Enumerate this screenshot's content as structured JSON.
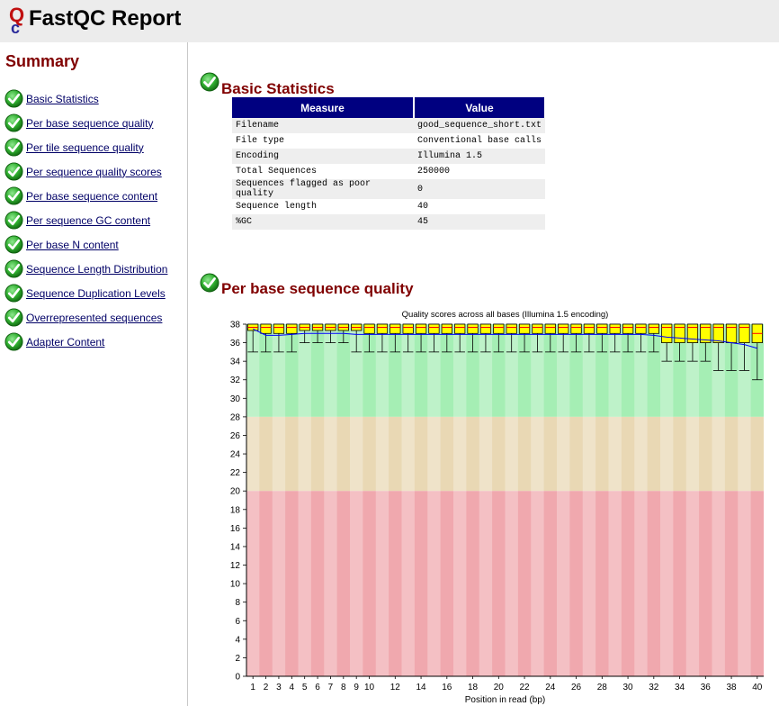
{
  "header": {
    "title": "FastQC Report"
  },
  "sidebar": {
    "title": "Summary",
    "items": [
      "Basic Statistics",
      "Per base sequence quality",
      "Per tile sequence quality",
      "Per sequence quality scores",
      "Per base sequence content",
      "Per sequence GC content",
      "Per base N content",
      "Sequence Length Distribution",
      "Sequence Duplication Levels",
      "Overrepresented sequences",
      "Adapter Content"
    ]
  },
  "basic_stats": {
    "title": "Basic Statistics",
    "headers": [
      "Measure",
      "Value"
    ],
    "rows": [
      [
        "Filename",
        "good_sequence_short.txt"
      ],
      [
        "File type",
        "Conventional base calls"
      ],
      [
        "Encoding",
        "Illumina 1.5"
      ],
      [
        "Total Sequences",
        "250000"
      ],
      [
        "Sequences flagged as poor quality",
        "0"
      ],
      [
        "Sequence length",
        "40"
      ],
      [
        "%GC",
        "45"
      ]
    ]
  },
  "per_base_quality": {
    "title": "Per base sequence quality"
  },
  "colors": {
    "accent": "#800000",
    "table_header": "#000080",
    "good_zone": "#a5eeb4",
    "warn_zone": "#e9d8b4",
    "fail_zone": "#f0a8ae",
    "box_fill": "#ffff00",
    "mean_line": "#0000ff",
    "median_line": "#ff0000"
  },
  "chart_data": {
    "type": "box",
    "title": "Quality scores across all bases (Illumina 1.5 encoding)",
    "xlabel": "Position in read (bp)",
    "ylabel": "",
    "ylim": [
      0,
      38
    ],
    "yticks": [
      0,
      2,
      4,
      6,
      8,
      10,
      12,
      14,
      16,
      18,
      20,
      22,
      24,
      26,
      28,
      30,
      32,
      34,
      36,
      38
    ],
    "xtick_labels": [
      "1",
      "2",
      "3",
      "4",
      "5",
      "6",
      "7",
      "8",
      "9",
      "10",
      "12",
      "14",
      "16",
      "18",
      "20",
      "22",
      "24",
      "26",
      "28",
      "30",
      "32",
      "34",
      "36",
      "38",
      "40"
    ],
    "zones": [
      {
        "name": "good",
        "from": 28,
        "to": 38
      },
      {
        "name": "warning",
        "from": 20,
        "to": 28
      },
      {
        "name": "fail",
        "from": 0,
        "to": 20
      }
    ],
    "positions": [
      1,
      2,
      3,
      4,
      5,
      6,
      7,
      8,
      9,
      10,
      11,
      12,
      13,
      14,
      15,
      16,
      17,
      18,
      19,
      20,
      21,
      22,
      23,
      24,
      25,
      26,
      27,
      28,
      29,
      30,
      31,
      32,
      33,
      34,
      35,
      36,
      37,
      38,
      39,
      40
    ],
    "series": [
      {
        "name": "lower_whisker",
        "values": [
          35,
          35,
          35,
          35,
          36,
          36,
          36,
          36,
          35,
          35,
          35,
          35,
          35,
          35,
          35,
          35,
          35,
          35,
          35,
          35,
          35,
          35,
          35,
          35,
          35,
          35,
          35,
          35,
          35,
          35,
          35,
          35,
          34,
          34,
          34,
          34,
          33,
          33,
          33,
          32
        ]
      },
      {
        "name": "q1",
        "values": [
          38,
          37,
          37,
          37,
          38,
          38,
          38,
          38,
          38,
          37,
          37,
          37,
          37,
          37,
          37,
          37,
          37,
          37,
          37,
          37,
          37,
          37,
          37,
          37,
          37,
          37,
          37,
          37,
          37,
          37,
          37,
          37,
          36,
          36,
          36,
          36,
          36,
          36,
          36,
          36
        ]
      },
      {
        "name": "median",
        "values": [
          38,
          38,
          38,
          38,
          38,
          38,
          38,
          38,
          38,
          38,
          38,
          38,
          38,
          38,
          38,
          38,
          38,
          38,
          38,
          38,
          38,
          38,
          38,
          38,
          38,
          38,
          38,
          38,
          38,
          38,
          38,
          38,
          38,
          38,
          38,
          38,
          38,
          38,
          38,
          37
        ]
      },
      {
        "name": "q3",
        "values": [
          38,
          38,
          38,
          38,
          38,
          38,
          38,
          38,
          38,
          38,
          38,
          38,
          38,
          38,
          38,
          38,
          38,
          38,
          38,
          38,
          38,
          38,
          38,
          38,
          38,
          38,
          38,
          38,
          38,
          38,
          38,
          38,
          38,
          38,
          38,
          38,
          38,
          38,
          38,
          38
        ]
      },
      {
        "name": "upper_whisker",
        "values": [
          38,
          38,
          38,
          38,
          38,
          38,
          38,
          38,
          38,
          38,
          38,
          38,
          38,
          38,
          38,
          38,
          38,
          38,
          38,
          38,
          38,
          38,
          38,
          38,
          38,
          38,
          38,
          38,
          38,
          38,
          38,
          38,
          38,
          38,
          38,
          38,
          38,
          38,
          38,
          38
        ]
      },
      {
        "name": "mean",
        "values": [
          37.5,
          36.8,
          36.8,
          36.9,
          37.0,
          37.0,
          37.0,
          37.0,
          36.9,
          36.9,
          36.9,
          36.9,
          36.9,
          36.9,
          36.9,
          36.9,
          36.9,
          36.9,
          36.9,
          36.9,
          36.9,
          36.9,
          36.9,
          36.9,
          36.9,
          36.9,
          36.9,
          36.9,
          36.9,
          36.9,
          36.9,
          36.8,
          36.6,
          36.5,
          36.4,
          36.3,
          36.2,
          36.0,
          35.8,
          35.4
        ]
      }
    ]
  }
}
